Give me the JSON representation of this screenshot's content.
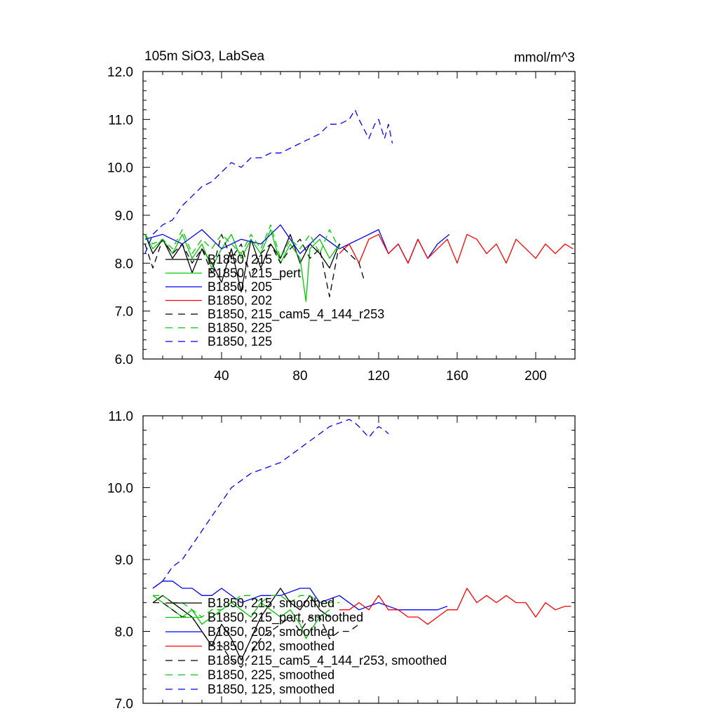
{
  "chart_data": [
    {
      "type": "line",
      "title": "105m SiO3, LabSea",
      "units_label": "mmol/m^3",
      "xlabel": "",
      "ylabel": "",
      "xlim": [
        0,
        220
      ],
      "ylim": [
        6.0,
        12.0
      ],
      "x_ticks": [
        40,
        80,
        120,
        160,
        200
      ],
      "x_tick_labels": [
        "40",
        "80",
        "120",
        "160",
        "200"
      ],
      "y_ticks": [
        6.0,
        7.0,
        8.0,
        9.0,
        10.0,
        11.0,
        12.0
      ],
      "y_tick_labels": [
        "6.0",
        "7.0",
        "8.0",
        "9.0",
        "10.0",
        "11.0",
        "12.0"
      ],
      "legend_position": "bottom-left",
      "series": [
        {
          "name": "B1850, 215",
          "color": "#000000",
          "dash": "solid",
          "x": [
            1,
            5,
            10,
            15,
            20,
            25,
            30,
            35,
            40,
            45,
            50,
            55,
            60,
            65,
            70,
            75,
            80,
            85,
            90,
            95,
            99
          ],
          "values": [
            8.6,
            8.2,
            8.5,
            8.1,
            8.4,
            7.8,
            8.3,
            8.0,
            7.6,
            8.3,
            7.4,
            8.5,
            7.9,
            8.4,
            8.1,
            8.6,
            8.0,
            8.4,
            8.2,
            7.9,
            8.3
          ]
        },
        {
          "name": "B1850, 215_pert",
          "color": "#00cc00",
          "dash": "solid",
          "x": [
            1,
            5,
            10,
            15,
            20,
            25,
            30,
            35,
            40,
            45,
            50,
            55,
            60,
            65,
            70,
            75,
            80,
            83,
            85,
            90,
            95,
            100
          ],
          "values": [
            8.6,
            8.3,
            8.5,
            8.2,
            8.6,
            8.1,
            8.4,
            7.9,
            8.3,
            8.6,
            8.1,
            8.5,
            8.2,
            8.7,
            8.0,
            8.4,
            8.1,
            7.2,
            8.3,
            8.5,
            8.1,
            8.4
          ]
        },
        {
          "name": "B1850, 205",
          "color": "#0000ff",
          "dash": "solid",
          "x": [
            1,
            10,
            20,
            30,
            40,
            50,
            60,
            70,
            80,
            90,
            100,
            110,
            120,
            125,
            130,
            135,
            140,
            145,
            150,
            156
          ],
          "values": [
            8.5,
            8.6,
            8.4,
            8.7,
            8.3,
            8.5,
            8.4,
            8.8,
            8.2,
            8.6,
            8.3,
            8.5,
            8.7,
            8.2,
            8.4,
            8.0,
            8.5,
            8.1,
            8.4,
            8.6
          ]
        },
        {
          "name": "B1850, 202",
          "color": "#ff0000",
          "dash": "solid",
          "x": [
            100,
            105,
            110,
            115,
            120,
            125,
            130,
            135,
            140,
            145,
            150,
            155,
            160,
            165,
            170,
            175,
            180,
            185,
            190,
            195,
            200,
            205,
            210,
            215,
            219
          ],
          "values": [
            8.2,
            8.4,
            8.0,
            8.5,
            8.6,
            8.2,
            8.4,
            8.0,
            8.5,
            8.1,
            8.3,
            8.5,
            8.0,
            8.6,
            8.5,
            8.2,
            8.4,
            8.0,
            8.5,
            8.3,
            8.1,
            8.4,
            8.2,
            8.4,
            8.3
          ]
        },
        {
          "name": "B1850, 215_cam5_4_144_r253",
          "color": "#000000",
          "dash": "dash",
          "x": [
            1,
            5,
            10,
            15,
            20,
            25,
            30,
            35,
            40,
            45,
            50,
            55,
            60,
            65,
            70,
            75,
            80,
            85,
            90,
            95,
            100,
            105,
            110,
            113
          ],
          "values": [
            8.4,
            7.9,
            8.5,
            8.2,
            8.4,
            8.0,
            8.3,
            7.8,
            8.6,
            8.1,
            8.4,
            7.7,
            8.2,
            8.4,
            8.0,
            8.3,
            8.5,
            8.1,
            8.3,
            7.3,
            8.4,
            8.2,
            8.0,
            7.6
          ]
        },
        {
          "name": "B1850, 225",
          "color": "#00cc00",
          "dash": "dash",
          "x": [
            1,
            5,
            10,
            15,
            20,
            25,
            30,
            35,
            40,
            45,
            50,
            55,
            60,
            65,
            70,
            75,
            80,
            85,
            90,
            95,
            100
          ],
          "values": [
            8.6,
            8.4,
            8.5,
            8.3,
            8.7,
            8.2,
            8.5,
            8.3,
            8.6,
            8.4,
            8.2,
            8.6,
            8.3,
            8.8,
            8.1,
            8.5,
            8.3,
            8.6,
            8.2,
            8.7,
            8.3
          ]
        },
        {
          "name": "B1850, 125",
          "color": "#0000ff",
          "dash": "dash",
          "x": [
            1,
            5,
            10,
            15,
            20,
            25,
            30,
            35,
            40,
            45,
            50,
            55,
            60,
            65,
            70,
            75,
            80,
            85,
            90,
            95,
            100,
            105,
            108,
            110,
            115,
            118,
            120,
            123,
            125,
            127
          ],
          "values": [
            8.2,
            8.6,
            8.8,
            8.9,
            9.2,
            9.4,
            9.6,
            9.7,
            9.9,
            10.1,
            10.0,
            10.2,
            10.2,
            10.3,
            10.3,
            10.4,
            10.5,
            10.6,
            10.7,
            10.9,
            10.9,
            11.0,
            11.2,
            11.0,
            10.6,
            10.9,
            11.0,
            10.6,
            10.9,
            10.5
          ]
        }
      ]
    },
    {
      "type": "line",
      "title": "",
      "xlabel": "",
      "ylabel": "",
      "xlim": [
        0,
        220
      ],
      "ylim": [
        7.0,
        11.0
      ],
      "x_ticks": [
        40,
        80,
        120,
        160,
        200
      ],
      "x_tick_labels": [],
      "y_ticks": [
        7.0,
        8.0,
        9.0,
        10.0,
        11.0
      ],
      "y_tick_labels": [
        "7.0",
        "8.0",
        "9.0",
        "10.0",
        "11.0"
      ],
      "legend_position": "bottom-left",
      "series": [
        {
          "name": "B1850, 215, smoothed",
          "color": "#000000",
          "dash": "solid",
          "x": [
            5,
            10,
            15,
            20,
            25,
            30,
            35,
            40,
            45,
            50,
            55,
            60,
            65,
            70,
            75,
            80,
            85,
            90,
            95
          ],
          "values": [
            8.4,
            8.5,
            8.4,
            8.3,
            8.2,
            8.0,
            7.8,
            8.1,
            7.9,
            7.6,
            7.9,
            8.2,
            8.4,
            8.6,
            8.4,
            8.3,
            8.5,
            8.3,
            8.2
          ]
        },
        {
          "name": "B1850, 215_pert, smoothed",
          "color": "#00cc00",
          "dash": "solid",
          "x": [
            5,
            10,
            15,
            20,
            25,
            30,
            35,
            40,
            45,
            50,
            55,
            60,
            65,
            70,
            75,
            80,
            83,
            85,
            90,
            95
          ],
          "values": [
            8.5,
            8.4,
            8.3,
            8.2,
            8.3,
            8.1,
            8.2,
            8.3,
            8.4,
            8.3,
            8.2,
            8.4,
            8.3,
            8.2,
            8.3,
            8.1,
            7.9,
            8.0,
            8.2,
            8.3
          ]
        },
        {
          "name": "B1850, 205, smoothed",
          "color": "#0000ff",
          "dash": "solid",
          "x": [
            5,
            10,
            15,
            20,
            25,
            30,
            35,
            40,
            50,
            60,
            70,
            80,
            85,
            90,
            100,
            110,
            120,
            130,
            140,
            150,
            155
          ],
          "values": [
            8.6,
            8.7,
            8.7,
            8.6,
            8.6,
            8.5,
            8.5,
            8.6,
            8.4,
            8.5,
            8.5,
            8.6,
            8.6,
            8.4,
            8.5,
            8.3,
            8.4,
            8.3,
            8.3,
            8.3,
            8.35
          ]
        },
        {
          "name": "B1850, 202, smoothed",
          "color": "#ff0000",
          "dash": "solid",
          "x": [
            100,
            105,
            110,
            115,
            120,
            125,
            130,
            135,
            140,
            145,
            150,
            155,
            160,
            165,
            170,
            175,
            180,
            185,
            190,
            195,
            200,
            205,
            210,
            215,
            218
          ],
          "values": [
            8.3,
            8.3,
            8.4,
            8.3,
            8.5,
            8.3,
            8.3,
            8.2,
            8.2,
            8.1,
            8.2,
            8.3,
            8.3,
            8.6,
            8.4,
            8.5,
            8.4,
            8.5,
            8.4,
            8.4,
            8.2,
            8.4,
            8.3,
            8.35,
            8.35
          ]
        },
        {
          "name": "B1850, 215_cam5_4_144_r253, smoothed",
          "color": "#000000",
          "dash": "dash",
          "x": [
            5,
            10,
            15,
            20,
            25,
            30,
            35,
            40,
            45,
            50,
            55,
            60,
            65,
            70,
            75,
            80,
            85,
            90,
            95,
            100,
            105,
            110
          ],
          "values": [
            8.4,
            8.4,
            8.3,
            8.2,
            8.2,
            8.0,
            7.8,
            7.8,
            7.6,
            7.5,
            7.7,
            7.9,
            8.0,
            8.1,
            8.2,
            8.0,
            8.2,
            8.2,
            7.9,
            8.0,
            8.0,
            8.1
          ]
        },
        {
          "name": "B1850, 225, smoothed",
          "color": "#00cc00",
          "dash": "dash",
          "x": [
            5,
            10,
            15,
            20,
            25,
            30,
            35,
            40,
            45,
            50,
            55,
            60,
            65,
            70,
            75,
            80,
            85,
            90,
            95,
            100
          ],
          "values": [
            8.5,
            8.5,
            8.4,
            8.4,
            8.3,
            8.2,
            8.3,
            8.3,
            8.4,
            8.5,
            8.5,
            8.4,
            8.5,
            8.5,
            8.4,
            8.5,
            8.5,
            8.4,
            8.4,
            8.4
          ]
        },
        {
          "name": "B1850, 125, smoothed",
          "color": "#0000ff",
          "dash": "dash",
          "x": [
            5,
            10,
            15,
            20,
            25,
            30,
            35,
            40,
            45,
            50,
            55,
            60,
            65,
            70,
            75,
            80,
            85,
            90,
            95,
            100,
            105,
            108,
            110,
            115,
            118,
            120,
            123,
            125
          ],
          "values": [
            8.6,
            8.7,
            8.9,
            9.0,
            9.2,
            9.4,
            9.6,
            9.8,
            10.0,
            10.1,
            10.2,
            10.25,
            10.3,
            10.35,
            10.45,
            10.55,
            10.65,
            10.75,
            10.85,
            10.9,
            10.95,
            10.9,
            10.85,
            10.7,
            10.8,
            10.85,
            10.8,
            10.75
          ]
        }
      ]
    }
  ]
}
